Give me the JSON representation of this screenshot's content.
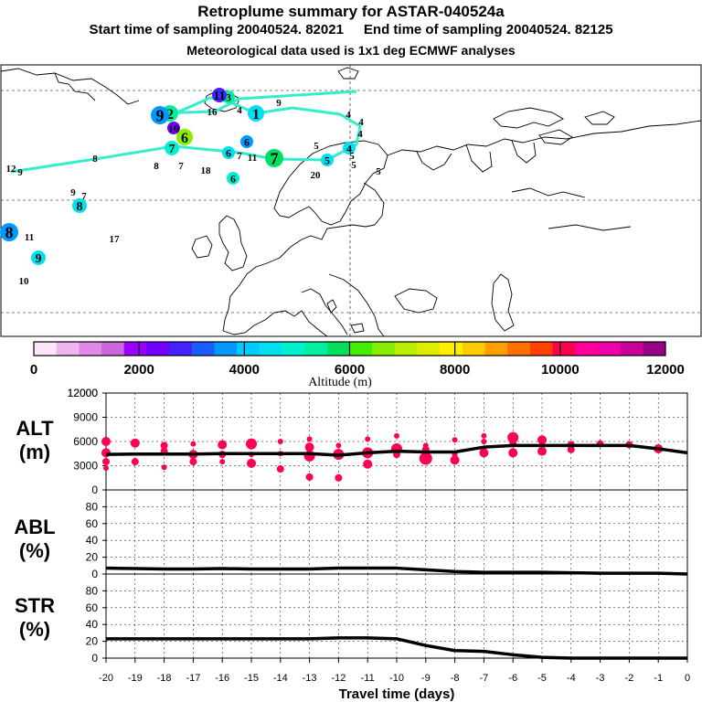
{
  "header": {
    "title": "Retroplume summary for ASTAR-040524a",
    "start_label": "Start time of sampling 20040524. 82021",
    "end_label": "End time of sampling 20040524. 82125",
    "met_label": "Meteorological data used is 1x1 deg ECMWF analyses"
  },
  "colorbar": {
    "title": "Altitude (m)",
    "tick_labels": [
      "0",
      "2000",
      "4000",
      "6000",
      "8000",
      "10000",
      "12000"
    ],
    "colors": [
      "#fbe6fb",
      "#f0b4f0",
      "#e08ae6",
      "#cc66dd",
      "#9900ff",
      "#7300ff",
      "#4422ff",
      "#1a5cff",
      "#0099ff",
      "#00ccff",
      "#00e0f0",
      "#00f0d0",
      "#00f0a0",
      "#00e060",
      "#44ee00",
      "#88ee00",
      "#bbee00",
      "#ddee00",
      "#ffee00",
      "#ffcc00",
      "#ffa000",
      "#ff7000",
      "#ff4000",
      "#ff0050",
      "#ff0099",
      "#ee00aa",
      "#cc0099",
      "#990088"
    ]
  },
  "map": {
    "line_color": "#33eecc",
    "labels": [
      {
        "t": "1",
        "alt": 4600,
        "s": 16
      },
      {
        "t": "2",
        "alt": 5300,
        "s": 16
      },
      {
        "t": "3",
        "alt": 5500,
        "s": 12
      },
      {
        "t": "4",
        "alt": 4700,
        "s": 11
      },
      {
        "t": "5",
        "alt": 4600,
        "s": 12
      },
      {
        "t": "6",
        "alt": 6500,
        "s": 16
      },
      {
        "t": "7",
        "alt": 5900,
        "s": 18
      },
      {
        "t": "8",
        "alt": 4400,
        "s": 14
      },
      {
        "t": "9",
        "alt": 4500,
        "s": 14
      },
      {
        "t": "10",
        "alt": 4500,
        "s": 11
      },
      {
        "t": "11",
        "alt": 4400,
        "s": 11
      },
      {
        "t": "4",
        "alt": 4300,
        "s": 12
      },
      {
        "t": "5",
        "alt": 4100,
        "s": 11
      },
      {
        "t": "6",
        "alt": 5100,
        "s": 12
      },
      {
        "t": "6",
        "alt": 4600,
        "s": 12
      },
      {
        "t": "7",
        "alt": 4900,
        "s": 14
      },
      {
        "t": "8",
        "alt": 5200,
        "s": 11
      },
      {
        "t": "9",
        "alt": 5800,
        "s": 11
      },
      {
        "t": "4",
        "alt": 4200,
        "s": 11
      },
      {
        "t": "5",
        "alt": 4000,
        "s": 11
      },
      {
        "t": "4",
        "alt": 4300,
        "s": 11
      },
      {
        "t": "20",
        "alt": 4500,
        "s": 11
      },
      {
        "t": "18",
        "alt": 4700,
        "s": 11
      },
      {
        "t": "8",
        "alt": 3900,
        "s": 11
      },
      {
        "t": "7",
        "alt": 4000,
        "s": 11
      },
      {
        "t": "6",
        "alt": 3800,
        "s": 12
      },
      {
        "t": "5",
        "alt": 3900,
        "s": 11
      },
      {
        "t": "9",
        "alt": 3900,
        "s": 11
      },
      {
        "t": "7",
        "alt": 3900,
        "s": 11
      },
      {
        "t": "8",
        "alt": 3700,
        "s": 18
      },
      {
        "t": "17",
        "alt": 3800,
        "s": 11
      },
      {
        "t": "11",
        "alt": 2600,
        "s": 14
      },
      {
        "t": "16",
        "alt": 2400,
        "s": 11
      },
      {
        "t": "9",
        "alt": 3600,
        "s": 18
      },
      {
        "t": "10",
        "alt": 2300,
        "s": 12
      },
      {
        "t": "4",
        "alt": 5600,
        "s": 11
      },
      {
        "t": "11",
        "alt": 4600,
        "s": 11
      },
      {
        "t": "12",
        "alt": 4800,
        "s": 11
      },
      {
        "t": "9",
        "alt": 4500,
        "s": 11
      },
      {
        "t": "5",
        "alt": 4400,
        "s": 11
      },
      {
        "t": "7",
        "alt": 4300,
        "s": 11
      }
    ]
  },
  "chart_data": [
    {
      "type": "scatter",
      "ylabel": "ALT (m)",
      "xlabel": "Travel time (days)",
      "ylim": [
        0,
        12000
      ],
      "yticks": [
        "0",
        "3000",
        "6000",
        "9000",
        "12000"
      ],
      "mean_line": {
        "x": [
          -20,
          -19,
          -18,
          -17,
          -16,
          -15,
          -14,
          -13,
          -12,
          -11,
          -10,
          -9,
          -8,
          -7,
          -6,
          -5,
          -4,
          -3,
          -2,
          -1,
          0
        ],
        "y": [
          4400,
          4450,
          4450,
          4450,
          4500,
          4500,
          4500,
          4500,
          4300,
          4600,
          4800,
          4700,
          4700,
          5300,
          5500,
          5500,
          5500,
          5500,
          5500,
          5100,
          4600
        ]
      },
      "marker_color": "#ff0055",
      "points": [
        {
          "x": -20,
          "y": 6000,
          "r": 5
        },
        {
          "x": -20,
          "y": 4600,
          "r": 5
        },
        {
          "x": -20,
          "y": 3500,
          "r": 4
        },
        {
          "x": -20,
          "y": 2700,
          "r": 3
        },
        {
          "x": -19,
          "y": 5800,
          "r": 5
        },
        {
          "x": -19,
          "y": 3500,
          "r": 4
        },
        {
          "x": -18,
          "y": 5500,
          "r": 4
        },
        {
          "x": -18,
          "y": 4800,
          "r": 4
        },
        {
          "x": -18,
          "y": 2800,
          "r": 3
        },
        {
          "x": -17,
          "y": 5700,
          "r": 3
        },
        {
          "x": -17,
          "y": 4400,
          "r": 5
        },
        {
          "x": -17,
          "y": 3500,
          "r": 4
        },
        {
          "x": -16,
          "y": 5600,
          "r": 5
        },
        {
          "x": -16,
          "y": 4400,
          "r": 4
        },
        {
          "x": -16,
          "y": 3500,
          "r": 3
        },
        {
          "x": -15,
          "y": 5700,
          "r": 6
        },
        {
          "x": -15,
          "y": 4400,
          "r": 3
        },
        {
          "x": -15,
          "y": 3300,
          "r": 5
        },
        {
          "x": -14,
          "y": 6000,
          "r": 3
        },
        {
          "x": -14,
          "y": 4500,
          "r": 3
        },
        {
          "x": -14,
          "y": 2600,
          "r": 4
        },
        {
          "x": -13,
          "y": 6300,
          "r": 3
        },
        {
          "x": -13,
          "y": 5300,
          "r": 5
        },
        {
          "x": -13,
          "y": 4200,
          "r": 6
        },
        {
          "x": -13,
          "y": 1600,
          "r": 4
        },
        {
          "x": -12,
          "y": 5500,
          "r": 3
        },
        {
          "x": -12,
          "y": 4400,
          "r": 6
        },
        {
          "x": -12,
          "y": 1500,
          "r": 4
        },
        {
          "x": -11,
          "y": 6300,
          "r": 3
        },
        {
          "x": -11,
          "y": 4600,
          "r": 6
        },
        {
          "x": -11,
          "y": 3200,
          "r": 5
        },
        {
          "x": -10,
          "y": 6700,
          "r": 3
        },
        {
          "x": -10,
          "y": 5100,
          "r": 6
        },
        {
          "x": -10,
          "y": 4400,
          "r": 4
        },
        {
          "x": -9,
          "y": 5500,
          "r": 3
        },
        {
          "x": -9,
          "y": 5000,
          "r": 4
        },
        {
          "x": -9,
          "y": 3900,
          "r": 7
        },
        {
          "x": -8,
          "y": 6200,
          "r": 3
        },
        {
          "x": -8,
          "y": 4400,
          "r": 3
        },
        {
          "x": -8,
          "y": 3700,
          "r": 5
        },
        {
          "x": -7,
          "y": 6700,
          "r": 3
        },
        {
          "x": -7,
          "y": 6000,
          "r": 3
        },
        {
          "x": -7,
          "y": 4600,
          "r": 5
        },
        {
          "x": -6,
          "y": 6500,
          "r": 6
        },
        {
          "x": -6,
          "y": 5700,
          "r": 4
        },
        {
          "x": -6,
          "y": 4600,
          "r": 5
        },
        {
          "x": -5,
          "y": 6200,
          "r": 5
        },
        {
          "x": -5,
          "y": 4800,
          "r": 5
        },
        {
          "x": -4,
          "y": 5600,
          "r": 4
        },
        {
          "x": -4,
          "y": 5000,
          "r": 4
        },
        {
          "x": -3,
          "y": 5700,
          "r": 4
        },
        {
          "x": -2,
          "y": 5600,
          "r": 4
        },
        {
          "x": -1,
          "y": 5100,
          "r": 5
        }
      ]
    },
    {
      "type": "line",
      "ylabel": "ABL (%)",
      "ylim": [
        0,
        100
      ],
      "yticks": [
        "0",
        "20",
        "40",
        "60",
        "80"
      ],
      "x": [
        -20,
        -19,
        -18,
        -17,
        -16,
        -15,
        -14,
        -13,
        -12,
        -11,
        -10,
        -9,
        -8,
        -7,
        -6,
        -5,
        -4,
        -3,
        -2,
        -1,
        0
      ],
      "y": [
        7,
        6.5,
        6,
        6,
        6.5,
        6,
        6,
        6,
        7,
        7,
        7,
        5,
        3,
        2,
        2,
        2,
        1.5,
        1,
        1,
        1,
        0
      ]
    },
    {
      "type": "line",
      "ylabel": "STR (%)",
      "xlabel": "Travel time (days)",
      "ylim": [
        0,
        100
      ],
      "yticks": [
        "0",
        "20",
        "40",
        "60",
        "80"
      ],
      "xticks": [
        "-20",
        "-19",
        "-18",
        "-17",
        "-16",
        "-15",
        "-14",
        "-13",
        "-12",
        "-11",
        "-10",
        "-9",
        "-8",
        "-7",
        "-6",
        "-5",
        "-4",
        "-3",
        "-2",
        "-1",
        "0"
      ],
      "x": [
        -20,
        -19,
        -18,
        -17,
        -16,
        -15,
        -14,
        -13,
        -12,
        -11,
        -10,
        -9,
        -8,
        -7,
        -6,
        -5,
        -4,
        -3,
        -2,
        -1,
        0
      ],
      "y": [
        23,
        23,
        23,
        23,
        23,
        23,
        23,
        23,
        24,
        24,
        23,
        15,
        9,
        8,
        4,
        1,
        0,
        0,
        0,
        0,
        0
      ]
    }
  ]
}
